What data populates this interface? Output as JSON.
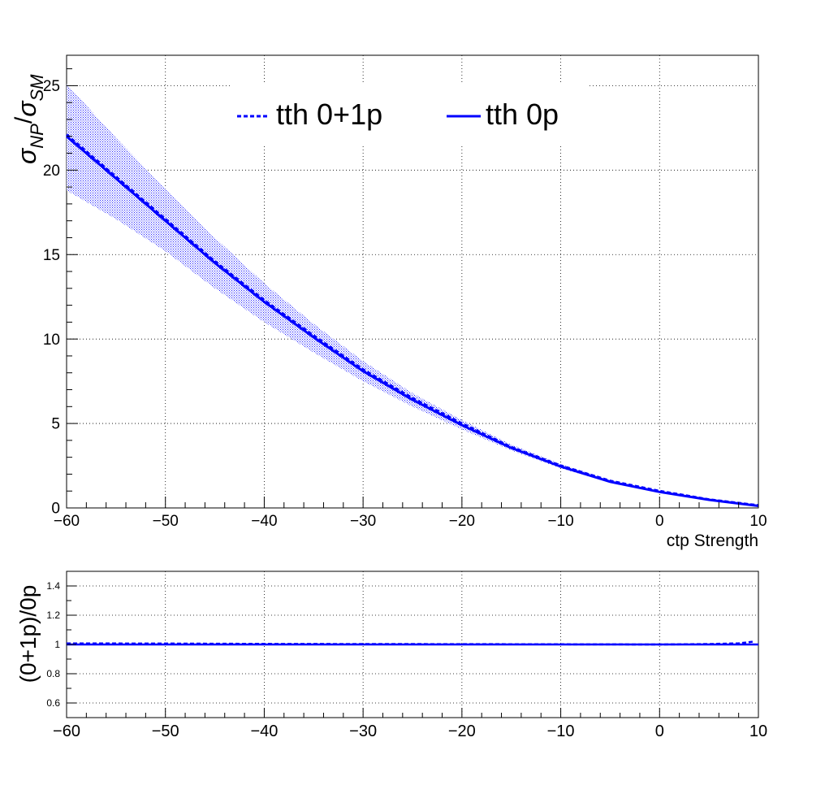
{
  "chart_data": [
    {
      "type": "line",
      "xlabel": "ctp Strength",
      "ylabel_main": "σ",
      "ylabel_sub_np": "NP",
      "ylabel_slash": "/",
      "ylabel_sub_sm": "SM",
      "xlim": [
        -60,
        10
      ],
      "ylim": [
        0,
        26.8
      ],
      "grid": true,
      "x_ticks": [
        -60,
        -50,
        -40,
        -30,
        -20,
        -10,
        0,
        10
      ],
      "x_tick_labels": [
        "−60",
        "−50",
        "−40",
        "−30",
        "−20",
        "−10",
        "0",
        "10"
      ],
      "y_ticks": [
        0,
        5,
        10,
        15,
        20,
        25
      ],
      "y_tick_labels": [
        "0",
        "5",
        "10",
        "15",
        "20",
        "25"
      ],
      "legend_position": "top",
      "series": [
        {
          "name": "tth 0+1p",
          "style": "dashed",
          "color": "#0000ff",
          "x": [
            -60,
            -55,
            -50,
            -45,
            -40,
            -35,
            -30,
            -25,
            -20,
            -15,
            -10,
            -5,
            0,
            5,
            10
          ],
          "y": [
            22.1,
            19.6,
            17.1,
            14.6,
            12.3,
            10.2,
            8.2,
            6.5,
            5.0,
            3.6,
            2.5,
            1.6,
            1.0,
            0.5,
            0.15
          ]
        },
        {
          "name": "tth 0p",
          "style": "solid",
          "color": "#0000ff",
          "x": [
            -60,
            -55,
            -50,
            -45,
            -40,
            -35,
            -30,
            -25,
            -20,
            -15,
            -10,
            -5,
            0,
            5,
            10
          ],
          "y": [
            22.0,
            19.5,
            17.0,
            14.5,
            12.2,
            10.1,
            8.1,
            6.4,
            4.9,
            3.55,
            2.45,
            1.55,
            0.95,
            0.48,
            0.12
          ]
        }
      ],
      "band": {
        "color": "#0000ff",
        "x": [
          -60,
          -55,
          -50,
          -45,
          -40,
          -35,
          -30,
          -25,
          -20,
          -15,
          -10,
          -5,
          0,
          5,
          10
        ],
        "upper": [
          25.1,
          21.9,
          18.9,
          16.0,
          13.3,
          10.9,
          8.7,
          6.8,
          5.2,
          3.75,
          2.6,
          1.65,
          1.0,
          0.5,
          0.15
        ],
        "lower": [
          18.8,
          17.1,
          15.2,
          13.0,
          11.0,
          9.2,
          7.5,
          6.0,
          4.65,
          3.4,
          2.35,
          1.5,
          0.92,
          0.46,
          0.1
        ]
      }
    },
    {
      "type": "line",
      "ylabel": "(0+1p)/0p",
      "xlim": [
        -60,
        10
      ],
      "ylim": [
        0.5,
        1.5
      ],
      "grid": true,
      "x_ticks": [
        -60,
        -50,
        -40,
        -30,
        -20,
        -10,
        0,
        10
      ],
      "x_tick_labels": [
        "−60",
        "−50",
        "−40",
        "−30",
        "−20",
        "−10",
        "0",
        "10"
      ],
      "y_ticks": [
        0.6,
        0.8,
        1.0,
        1.2,
        1.4
      ],
      "y_tick_labels": [
        "0.6",
        "0.8",
        "1",
        "1.2",
        "1.4"
      ],
      "series": [
        {
          "name": "",
          "style": "dashed",
          "color": "#0000ff",
          "x": [
            -60,
            -50,
            -40,
            -30,
            -20,
            -10,
            0,
            5,
            8,
            9,
            9.5
          ],
          "y": [
            1.007,
            1.006,
            1.004,
            1.003,
            1.002,
            1.001,
            1.0,
            1.003,
            1.008,
            1.015,
            1.02
          ]
        },
        {
          "name": "",
          "style": "solid",
          "color": "#0000ff",
          "x": [
            -60,
            10
          ],
          "y": [
            1.0,
            1.0
          ]
        }
      ]
    }
  ]
}
